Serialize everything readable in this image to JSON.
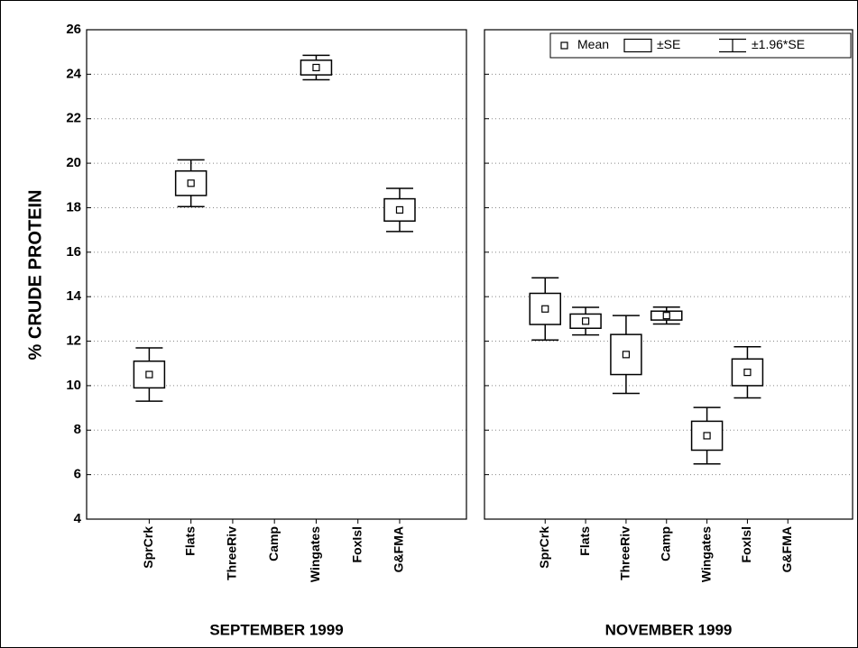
{
  "chart_data": [
    {
      "type": "box",
      "xlabel": "SEPTEMBER 1999",
      "ylabel": "% CRUDE PROTEIN",
      "categories": [
        "SprCrk",
        "Flats",
        "ThreeRiv",
        "Camp",
        "Wingates",
        "FoxIsl",
        "G&FMA"
      ],
      "series": [
        {
          "values": [
            10.5,
            19.1,
            null,
            null,
            24.3,
            null,
            17.9
          ]
        },
        {
          "values": [
            0.6,
            0.55,
            null,
            null,
            0.33,
            null,
            0.5
          ]
        },
        {
          "values": [
            1.2,
            1.05,
            null,
            null,
            0.55,
            null,
            0.97
          ]
        }
      ],
      "ylim": [
        4,
        26
      ],
      "yticks": [
        4,
        6,
        8,
        10,
        12,
        14,
        16,
        18,
        20,
        22,
        24,
        26
      ],
      "grid": true
    },
    {
      "type": "box",
      "xlabel": "NOVEMBER 1999",
      "categories": [
        "SprCrk",
        "Flats",
        "ThreeRiv",
        "Camp",
        "Wingates",
        "FoxIsl",
        "G&FMA"
      ],
      "series": [
        {
          "name": "Mean",
          "values": [
            13.45,
            12.9,
            11.4,
            13.15,
            7.75,
            10.6,
            null
          ]
        },
        {
          "name": "±SE",
          "values": [
            0.7,
            0.32,
            0.9,
            0.2,
            0.65,
            0.6,
            null
          ]
        },
        {
          "name": "±1.96*SE",
          "values": [
            1.4,
            0.62,
            1.75,
            0.38,
            1.27,
            1.15,
            null
          ]
        }
      ],
      "ylim": [
        4,
        26
      ],
      "yticks": [
        4,
        6,
        8,
        10,
        12,
        14,
        16,
        18,
        20,
        22,
        24,
        26
      ],
      "grid": true,
      "legend": "top-right"
    }
  ]
}
